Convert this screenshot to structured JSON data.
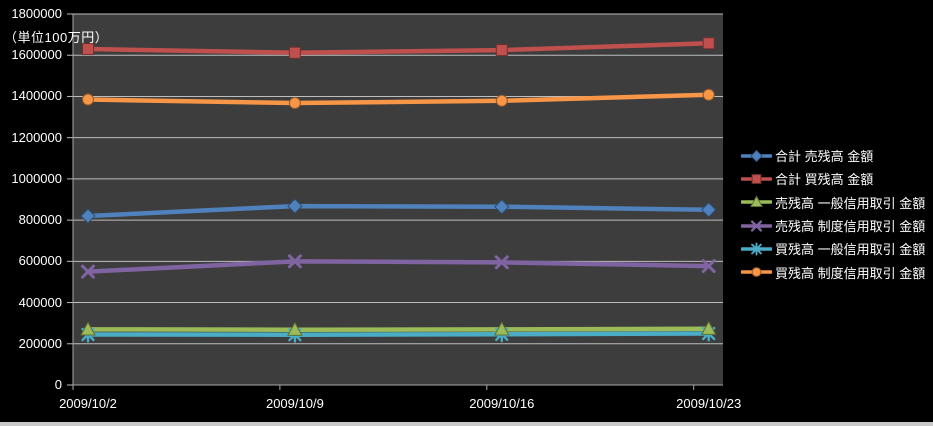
{
  "chart_data": {
    "type": "line",
    "title": "",
    "unit_label": "（単位100万円）",
    "x": [
      "2009/10/2",
      "2009/10/9",
      "2009/10/16",
      "2009/10/23"
    ],
    "series": [
      {
        "name": "合計 売残高 金額",
        "color": "#4F81BD",
        "marker": "diamond",
        "values": [
          820000,
          868000,
          865000,
          850000
        ]
      },
      {
        "name": "合計 買残高 金額",
        "color": "#C0504D",
        "marker": "square",
        "values": [
          1630000,
          1612000,
          1625000,
          1658000
        ]
      },
      {
        "name": "売残高 一般信用取引 金額",
        "color": "#9BBB59",
        "marker": "triangle",
        "values": [
          270000,
          268000,
          270000,
          273000
        ]
      },
      {
        "name": "売残高 制度信用取引 金額",
        "color": "#8064A2",
        "marker": "x",
        "values": [
          550000,
          600000,
          595000,
          577000
        ]
      },
      {
        "name": "買残高 一般信用取引 金額",
        "color": "#4BACC6",
        "marker": "asterisk",
        "values": [
          245000,
          244000,
          246000,
          250000
        ]
      },
      {
        "name": "買残高 制度信用取引 金額",
        "color": "#F79646",
        "marker": "circle",
        "values": [
          1385000,
          1368000,
          1379000,
          1408000
        ]
      }
    ],
    "ylim": [
      0,
      1800000
    ],
    "ytick_step": 200000,
    "ytick_labels": [
      "0",
      "200000",
      "400000",
      "600000",
      "800000",
      "1000000",
      "1200000",
      "1400000",
      "1600000",
      "1800000"
    ],
    "grid": true,
    "legend_position": "right",
    "colors": {
      "outer_bg": "#000000",
      "plot_bg": "#3D3D3D",
      "gridline": "#BDBDBD",
      "axis": "#A8A8A8",
      "text": "#FFFFFF"
    }
  }
}
